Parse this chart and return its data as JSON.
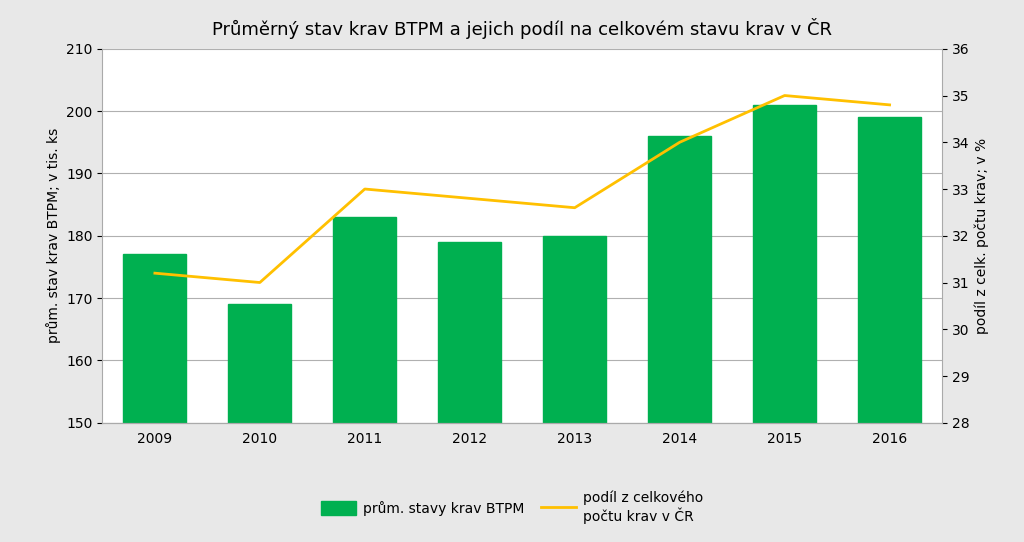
{
  "title": "Průměrný stav krav BTPM a jejich podíl na celkovém stavu krav v ČR",
  "years": [
    2009,
    2010,
    2011,
    2012,
    2013,
    2014,
    2015,
    2016
  ],
  "bar_values": [
    177,
    169,
    183,
    179,
    180,
    196,
    201,
    199
  ],
  "line_values": [
    31.2,
    31.0,
    33.0,
    32.8,
    32.6,
    34.0,
    35.0,
    34.8
  ],
  "bar_color": "#00b050",
  "line_color": "#ffc000",
  "ylabel_left": "prům. stav krav BTPM; v tis. ks",
  "ylabel_right": "podíl z celk. počtu krav; v %",
  "ylim_left": [
    150,
    210
  ],
  "ylim_right": [
    28,
    36
  ],
  "yticks_left": [
    150,
    160,
    170,
    180,
    190,
    200,
    210
  ],
  "yticks_right": [
    28,
    29,
    30,
    31,
    32,
    33,
    34,
    35,
    36
  ],
  "legend_bar": "prům. stavy krav BTPM",
  "legend_line": "podíl z celkového\npočtu krav v ČR",
  "outer_background": "#e8e8e8",
  "inner_background": "#ffffff",
  "grid_color": "#b0b0b0",
  "spine_color": "#aaaaaa",
  "title_fontsize": 13,
  "axis_fontsize": 10,
  "tick_fontsize": 10
}
